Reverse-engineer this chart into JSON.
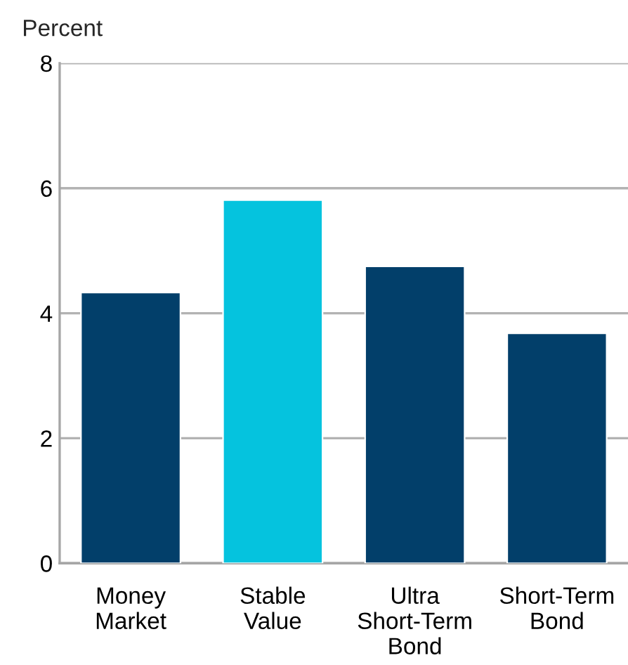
{
  "chart_data": {
    "type": "bar",
    "ylabel": "Percent",
    "categories": [
      "Money\nMarket",
      "Stable\nValue",
      "Ultra\nShort-Term\nBond",
      "Short-Term\nBond"
    ],
    "values": [
      4.33,
      5.81,
      4.75,
      3.68
    ],
    "colors": [
      "#023f6a",
      "#05c3de",
      "#023f6a",
      "#023f6a"
    ],
    "ylim": [
      0,
      8
    ],
    "yticks": [
      0,
      2,
      4,
      6,
      8
    ],
    "grid": "y",
    "legend": false
  }
}
